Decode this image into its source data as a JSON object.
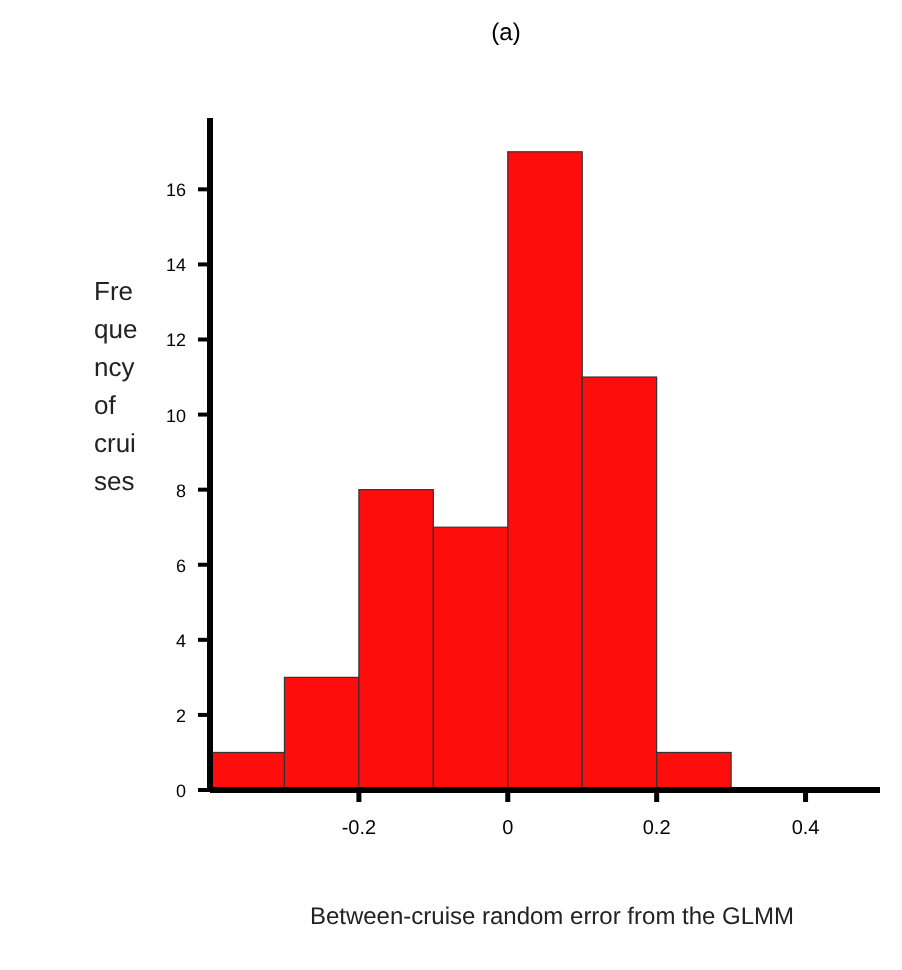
{
  "chart_data": {
    "type": "histogram",
    "title": "(a)",
    "xlabel": "Between-cruise random error from the GLMM",
    "ylabel": "Fre\nque\nncy\nof\ncrui\nses",
    "bins": [
      -0.4,
      -0.3,
      -0.2,
      -0.1,
      0,
      0.1,
      0.2,
      0.3
    ],
    "values": [
      1,
      3,
      8,
      7,
      17,
      11,
      1
    ],
    "color": "#ff0d0d",
    "xlim": [
      -0.4,
      0.5
    ],
    "xticks": [
      -0.2,
      0,
      0.2,
      0.4
    ],
    "ylim": [
      0,
      17.9
    ],
    "yticks": [
      0,
      2,
      4,
      6,
      8,
      10,
      12,
      14,
      16
    ]
  }
}
